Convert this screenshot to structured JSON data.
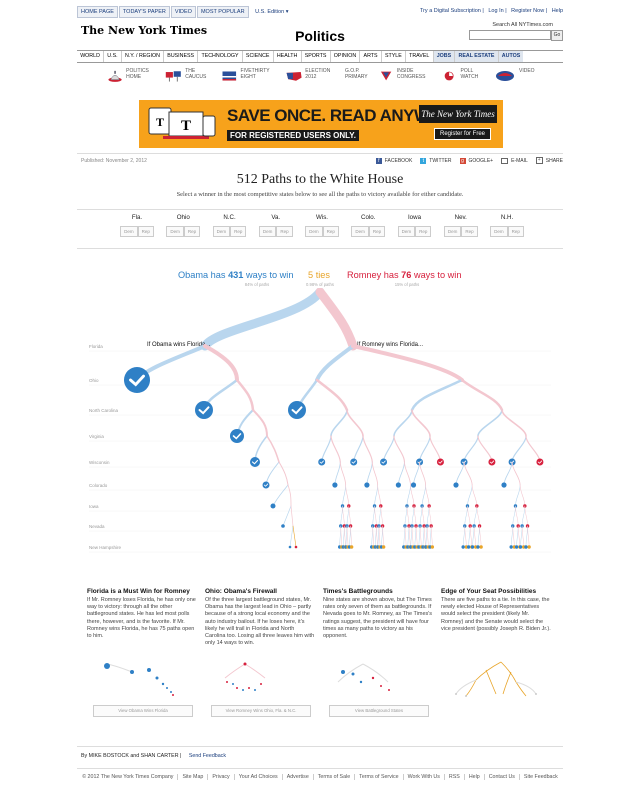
{
  "topbar": {
    "tabs": [
      "HOME PAGE",
      "TODAY'S PAPER",
      "VIDEO",
      "MOST POPULAR"
    ],
    "edition": "U.S. Edition",
    "links": [
      "Try a Digital Subscription",
      "Log In",
      "Register Now",
      "Help"
    ]
  },
  "masthead": {
    "logo": "The New York Times",
    "section": "Politics",
    "search_label": "Search All NYTimes.com",
    "go": "Go"
  },
  "nav": {
    "items": [
      "WORLD",
      "U.S.",
      "N.Y. / REGION",
      "BUSINESS",
      "TECHNOLOGY",
      "SCIENCE",
      "HEALTH",
      "SPORTS",
      "OPINION",
      "ARTS",
      "STYLE",
      "TRAVEL",
      "JOBS",
      "REAL ESTATE",
      "AUTOS"
    ]
  },
  "subnav": {
    "items": [
      "POLITICS HOME",
      "THE CAUCUS",
      "FIVETHIRTY EIGHT",
      "ELECTION 2012",
      "G.O.P. PRIMARY",
      "INSIDE CONGRESS",
      "POLL WATCH",
      "VIDEO"
    ]
  },
  "ad": {
    "headline": "SAVE ONCE. READ ANYWHERE.",
    "sub": "FOR REGISTERED USERS ONLY.",
    "brand": "The New York Times",
    "cta": "Register for Free"
  },
  "article": {
    "published": "Published: November 2, 2012",
    "share": [
      "FACEBOOK",
      "TWITTER",
      "GOOGLE+",
      "E-MAIL",
      "SHARE"
    ],
    "title": "512 Paths to the White House",
    "subtitle": "Select a winner in the most competitive states below to see all the paths to victory available for either candidate."
  },
  "states": [
    {
      "name": "Fla."
    },
    {
      "name": "Ohio"
    },
    {
      "name": "N.C."
    },
    {
      "name": "Va."
    },
    {
      "name": "Wis."
    },
    {
      "name": "Colo."
    },
    {
      "name": "Iowa"
    },
    {
      "name": "Nev."
    },
    {
      "name": "N.H."
    }
  ],
  "state_buttons": {
    "dem": "Dem",
    "rep": "Rep"
  },
  "summary": {
    "obama_pre": "Obama has",
    "obama_num": "431",
    "obama_post": "ways to win",
    "obama_pct": "84% of paths",
    "ties_num": "5",
    "ties_label": "ties",
    "ties_pct": "0.98% of paths",
    "romney_pre": "Romney has",
    "romney_num": "76",
    "romney_post": "ways to win",
    "romney_pct": "15% of paths"
  },
  "tree": {
    "row_labels": [
      "Florida",
      "Ohio",
      "North Carolina",
      "Virginia",
      "Wisconsin",
      "Colorado",
      "Iowa",
      "Nevada",
      "New Hampshire"
    ],
    "left_label": "If Obama wins Florida...",
    "right_label": "If Romney wins Florida...",
    "colors": {
      "dem": "#2f80c6",
      "rep": "#d7213e",
      "dem_light": "#b9d6ee",
      "rep_light": "#f3c7cf",
      "tie": "#e8a52a"
    }
  },
  "columns": [
    {
      "title": "Florida is a Must Win for Romney",
      "body": "If Mr. Romney loses Florida, he has only one way to victory: through all the other battleground states. He has led most polls there, however, and is the favorite. If Mr. Romney wins Florida, he has 75 paths open to him.",
      "button": "View Obama Wins Florida"
    },
    {
      "title": "Ohio: Obama's Firewall",
      "body": "Of the three largest battleground states, Mr. Obama has the largest lead in Ohio – partly because of a strong local economy and the auto industry bailout. If he loses here, it's likely he will trail in Florida and North Carolina too. Losing all three leaves him with only 14 ways to win.",
      "button": "View Romney Wins Ohio, Fla. & N.C."
    },
    {
      "title": "Times's Battlegrounds",
      "body": "Nine states are shown above, but The Times rates only seven of them as battlegrounds. If Nevada goes to Mr. Romney, as The Times's ratings suggest, the president will have four times as many paths to victory as his opponent.",
      "button": "View Battleground States"
    },
    {
      "title": "Edge of Your Seat Possibilities",
      "body": "There are five paths to a tie. In this case, the newly elected House of Representatives would select the president (likely Mr. Romney) and the Senate would select the vice president (possibly Joseph R. Biden Jr.).",
      "button": ""
    }
  ],
  "byline": {
    "authors": "By MIKE BOSTOCK and SHAN CARTER",
    "feedback": "Send Feedback"
  },
  "footer": [
    "© 2012 The New York Times Company",
    "Site Map",
    "Privacy",
    "Your Ad Choices",
    "Advertise",
    "Terms of Sale",
    "Terms of Service",
    "Work With Us",
    "RSS",
    "Help",
    "Contact Us",
    "Site Feedback"
  ]
}
